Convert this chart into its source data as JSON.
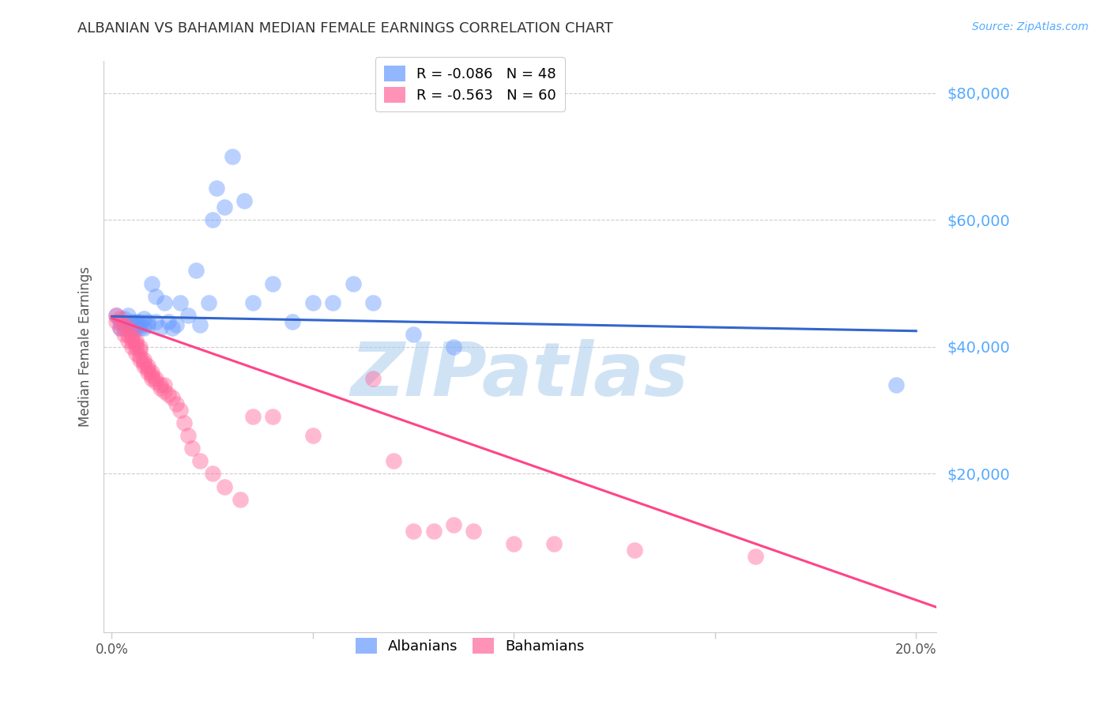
{
  "title": "ALBANIAN VS BAHAMIAN MEDIAN FEMALE EARNINGS CORRELATION CHART",
  "source": "Source: ZipAtlas.com",
  "ylabel": "Median Female Earnings",
  "legend_entries": [
    {
      "label": "R = -0.086   N = 48",
      "color": "#6699ff"
    },
    {
      "label": "R = -0.563   N = 60",
      "color": "#ff6699"
    }
  ],
  "legend_names": [
    "Albanians",
    "Bahamians"
  ],
  "ytick_labels": [
    "$80,000",
    "$60,000",
    "$40,000",
    "$20,000"
  ],
  "ytick_values": [
    80000,
    60000,
    40000,
    20000
  ],
  "ylim": [
    -5000,
    85000
  ],
  "xlim": [
    -0.002,
    0.205
  ],
  "background_color": "#ffffff",
  "grid_color": "#cccccc",
  "watermark_text": "ZIPatlas",
  "watermark_color": "#aaccee",
  "blue_color": "#6699ff",
  "pink_color": "#ff6699",
  "blue_line_color": "#3366cc",
  "pink_line_color": "#ff4488",
  "title_color": "#333333",
  "axis_label_color": "#555555",
  "ytick_color": "#55aaff",
  "xtick_color": "#555555",
  "blue_scatter_x": [
    0.001,
    0.002,
    0.002,
    0.003,
    0.003,
    0.004,
    0.004,
    0.005,
    0.005,
    0.005,
    0.006,
    0.006,
    0.006,
    0.007,
    0.007,
    0.007,
    0.008,
    0.008,
    0.009,
    0.009,
    0.01,
    0.011,
    0.011,
    0.012,
    0.013,
    0.014,
    0.015,
    0.016,
    0.017,
    0.019,
    0.021,
    0.022,
    0.024,
    0.025,
    0.026,
    0.028,
    0.03,
    0.033,
    0.035,
    0.04,
    0.045,
    0.05,
    0.055,
    0.06,
    0.065,
    0.075,
    0.085,
    0.195
  ],
  "blue_scatter_y": [
    45000,
    44000,
    43000,
    44500,
    43000,
    45000,
    43500,
    44000,
    43500,
    43000,
    44000,
    43000,
    43500,
    43000,
    44000,
    43500,
    44500,
    43000,
    44000,
    43500,
    50000,
    44000,
    48000,
    43000,
    47000,
    44000,
    43000,
    43500,
    47000,
    45000,
    52000,
    43500,
    47000,
    60000,
    65000,
    62000,
    70000,
    63000,
    47000,
    50000,
    44000,
    47000,
    47000,
    50000,
    47000,
    42000,
    40000,
    34000
  ],
  "pink_scatter_x": [
    0.001,
    0.001,
    0.002,
    0.002,
    0.003,
    0.003,
    0.004,
    0.004,
    0.004,
    0.005,
    0.005,
    0.005,
    0.005,
    0.006,
    0.006,
    0.006,
    0.006,
    0.007,
    0.007,
    0.007,
    0.007,
    0.008,
    0.008,
    0.008,
    0.009,
    0.009,
    0.009,
    0.01,
    0.01,
    0.01,
    0.011,
    0.011,
    0.012,
    0.012,
    0.013,
    0.013,
    0.014,
    0.015,
    0.016,
    0.017,
    0.018,
    0.019,
    0.02,
    0.022,
    0.025,
    0.028,
    0.032,
    0.035,
    0.04,
    0.05,
    0.065,
    0.07,
    0.075,
    0.08,
    0.085,
    0.09,
    0.1,
    0.11,
    0.13,
    0.16
  ],
  "pink_scatter_y": [
    45000,
    44000,
    44500,
    43000,
    43500,
    42000,
    43000,
    42000,
    41000,
    42000,
    41500,
    41000,
    40000,
    41000,
    40500,
    40000,
    39000,
    40000,
    39500,
    38500,
    38000,
    38000,
    37500,
    37000,
    37000,
    36500,
    36000,
    36000,
    35500,
    35000,
    35000,
    34500,
    34000,
    33500,
    34000,
    33000,
    32500,
    32000,
    31000,
    30000,
    28000,
    26000,
    24000,
    22000,
    20000,
    18000,
    16000,
    29000,
    29000,
    26000,
    35000,
    22000,
    11000,
    11000,
    12000,
    11000,
    9000,
    9000,
    8000,
    7000
  ],
  "blue_trend_x": [
    0.0,
    0.2
  ],
  "blue_trend_y": [
    44800,
    42500
  ],
  "pink_trend_x": [
    0.0,
    0.205
  ],
  "pink_trend_y": [
    44500,
    -1000
  ],
  "xtick_positions": [
    0.0,
    0.05,
    0.1,
    0.15,
    0.2
  ],
  "xtick_labels_show": [
    "0.0%",
    "",
    "",
    "",
    "20.0%"
  ]
}
